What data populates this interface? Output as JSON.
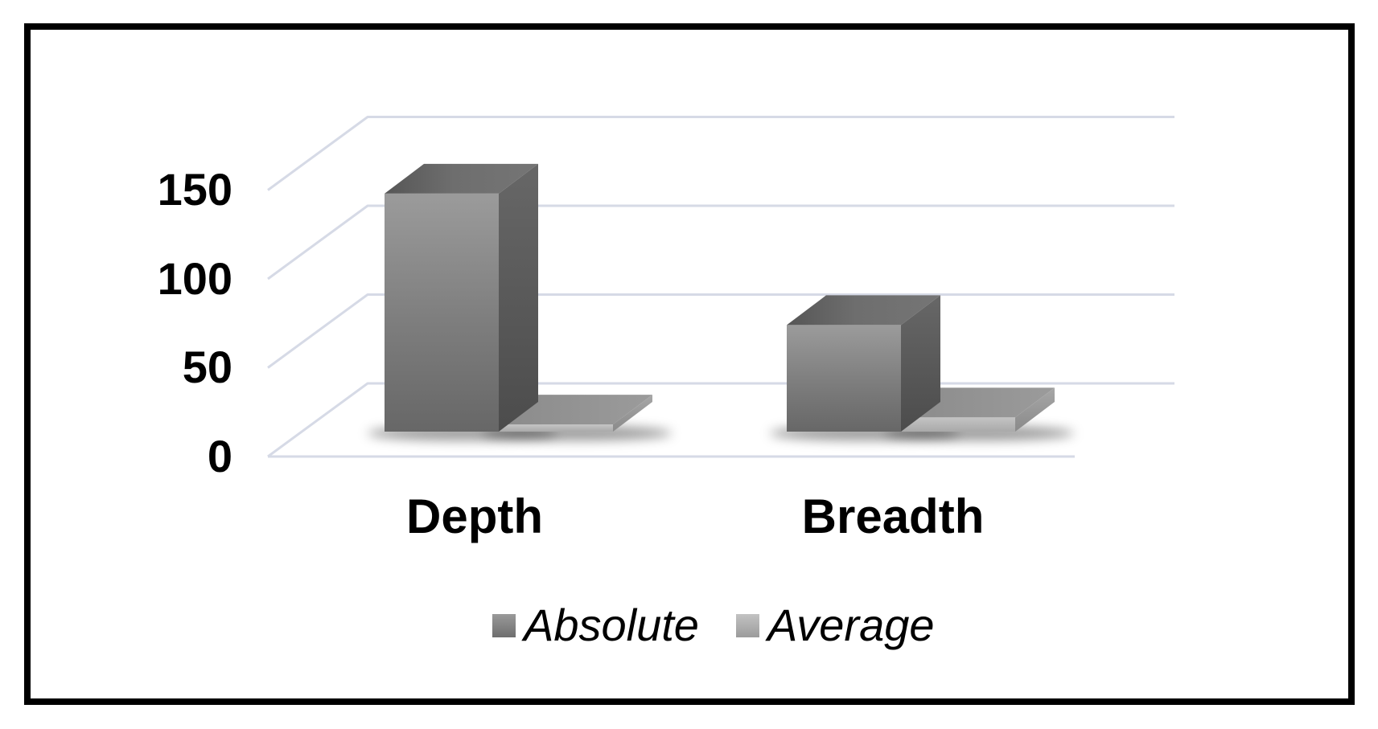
{
  "chart_data": {
    "type": "bar",
    "variant": "3d-clustered-column",
    "title": "",
    "xlabel": "",
    "ylabel": "",
    "categories": [
      "Depth",
      "Breadth"
    ],
    "series": [
      {
        "name": "Absolute",
        "values": [
          134,
          60
        ],
        "color": "#7d7d7d"
      },
      {
        "name": "Average",
        "values": [
          4,
          8
        ],
        "color": "#aaaaaa"
      }
    ],
    "ylim": [
      0,
      150
    ],
    "yticks": [
      0,
      50,
      100,
      150
    ],
    "ytick_labels": [
      "0",
      "50",
      "100",
      "150"
    ],
    "grid": true,
    "legend_position": "bottom"
  },
  "colors": {
    "frame": "#000000",
    "gridline": "#d6dae6",
    "text": "#000000",
    "absolute_front": "#8d8d8d",
    "average_front": "#b7b7b7",
    "background": "#ffffff"
  }
}
